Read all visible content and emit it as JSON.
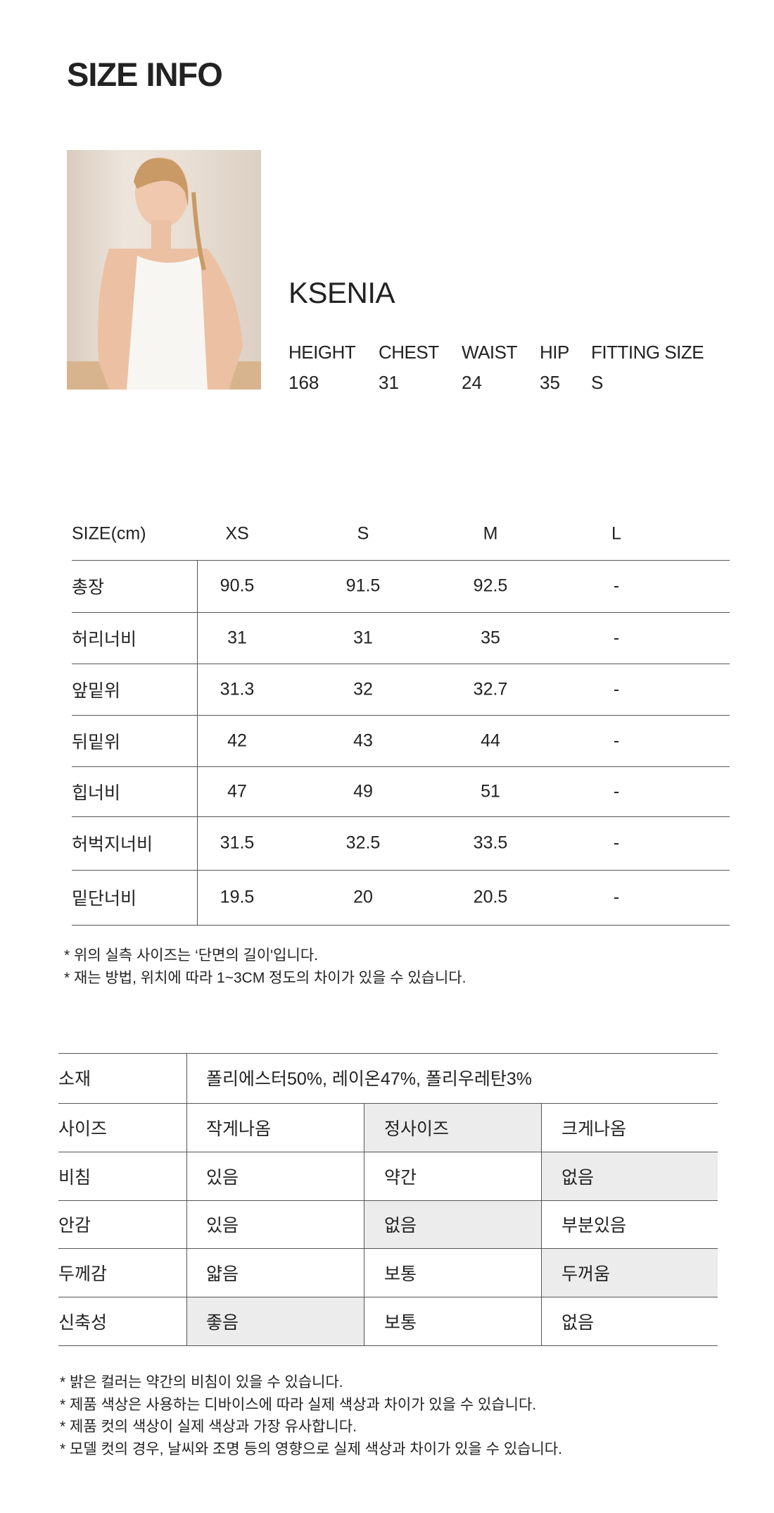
{
  "title": "SIZE INFO",
  "model": {
    "name": "KSENIA",
    "stats": [
      {
        "label": "HEIGHT",
        "value": "168"
      },
      {
        "label": "CHEST",
        "value": "31"
      },
      {
        "label": "WAIST",
        "value": "24"
      },
      {
        "label": "HIP",
        "value": "35"
      },
      {
        "label": "FITTING SIZE",
        "value": "S"
      }
    ]
  },
  "size_table": {
    "header_label": "SIZE(cm)",
    "sizes": [
      "XS",
      "S",
      "M",
      "L"
    ],
    "rows": [
      {
        "label": "총장",
        "values": [
          "90.5",
          "91.5",
          "92.5",
          "-"
        ]
      },
      {
        "label": "허리너비",
        "values": [
          "31",
          "31",
          "35",
          "-"
        ]
      },
      {
        "label": "앞밑위",
        "values": [
          "31.3",
          "32",
          "32.7",
          "-"
        ]
      },
      {
        "label": "뒤밑위",
        "values": [
          "42",
          "43",
          "44",
          "-"
        ]
      },
      {
        "label": "힙너비",
        "values": [
          "47",
          "49",
          "51",
          "-"
        ]
      },
      {
        "label": "허벅지너비",
        "values": [
          "31.5",
          "32.5",
          "33.5",
          "-"
        ]
      },
      {
        "label": "밑단너비",
        "values": [
          "19.5",
          "20",
          "20.5",
          "-"
        ]
      }
    ],
    "notes": [
      "* 위의 실측 사이즈는 ‘단면의 길이'입니다.",
      "* 재는 방법, 위치에 따라 1~3CM 정도의 차이가 있을 수 있습니다."
    ]
  },
  "material_table": {
    "material_label": "소재",
    "material_value": "폴리에스터50%, 레이온47%, 폴리우레탄3%",
    "highlight_color": "#ececec",
    "rows": [
      {
        "label": "사이즈",
        "options": [
          "작게나옴",
          "정사이즈",
          "크게나옴"
        ],
        "selected": 1
      },
      {
        "label": "비침",
        "options": [
          "있음",
          "약간",
          "없음"
        ],
        "selected": 2
      },
      {
        "label": "안감",
        "options": [
          "있음",
          "없음",
          "부분있음"
        ],
        "selected": 1
      },
      {
        "label": "두께감",
        "options": [
          "얇음",
          "보통",
          "두꺼움"
        ],
        "selected": 2
      },
      {
        "label": "신축성",
        "options": [
          "좋음",
          "보통",
          "없음"
        ],
        "selected": 0
      }
    ],
    "notes": [
      "* 밝은 컬러는 약간의 비침이 있을 수 있습니다.",
      "* 제품 색상은 사용하는 디바이스에 따라 실제 색상과 차이가 있을 수 있습니다.",
      "* 제품 컷의 색상이 실제 색상과 가장 유사합니다.",
      "* 모델 컷의 경우, 날씨와 조명 등의 영향으로 실제 색상과 차이가 있을 수 있습니다."
    ]
  }
}
